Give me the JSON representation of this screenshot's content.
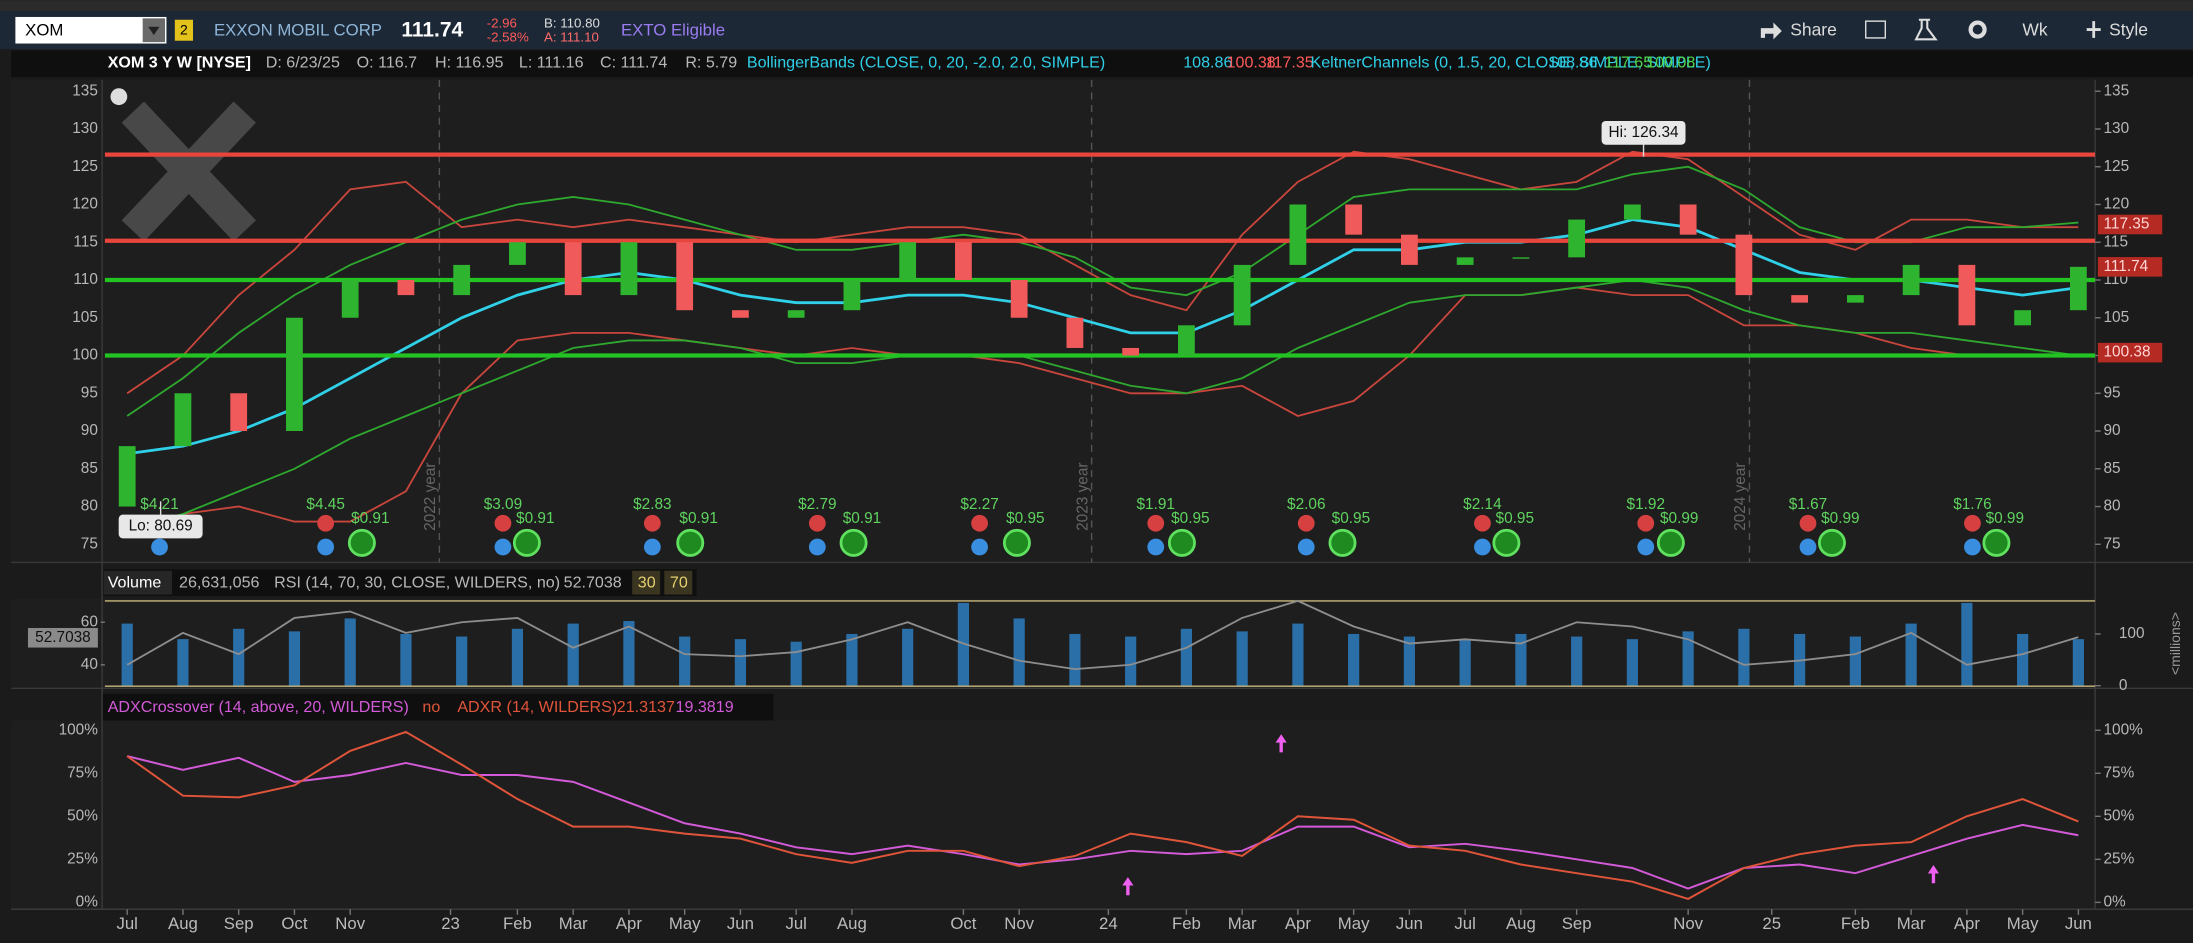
{
  "toolbar": {
    "symbol": "XOM",
    "link_badge": "2",
    "company": "EXXON MOBIL CORP",
    "last": "111.74",
    "change": "-2.96",
    "change_pct": "-2.58%",
    "bid": "B: 110.80",
    "ask": "A: 111.10",
    "tag": "EXTO Eligible",
    "buttons": [
      "Share",
      "Wk",
      "Style"
    ]
  },
  "header": {
    "study": "XOM 3 Y W [NYSE]",
    "fields": [
      "D: 6/23/25",
      "O: 116.7",
      "H: 116.95",
      "L: 111.16",
      "C: 111.74",
      "R: 5.79"
    ],
    "bollinger": {
      "label": "BollingerBands (CLOSE, 0, 20, -2.0, 2.0, SIMPLE)",
      "values": [
        "108.86",
        "100.38",
        "117.35"
      ]
    },
    "keltner": {
      "label": "KeltnerChannels (0, 1.5, 20, CLOSE, SIMPLE, SIMPLE)",
      "values": [
        "108.86",
        "117.65",
        "100.08"
      ]
    }
  },
  "chart_data": [
    {
      "type": "candlestick",
      "xlim": [
        -0.4,
        35.3
      ],
      "xticks": [
        {
          "value": 0,
          "label": "Jul"
        },
        {
          "value": 1,
          "label": "Aug"
        },
        {
          "value": 2,
          "label": "Sep"
        },
        {
          "value": 3,
          "label": "Oct"
        },
        {
          "value": 4,
          "label": "Nov"
        },
        {
          "value": 5.8,
          "label": "23"
        },
        {
          "value": 7,
          "label": "Feb"
        },
        {
          "value": 8,
          "label": "Mar"
        },
        {
          "value": 9,
          "label": "Apr"
        },
        {
          "value": 10,
          "label": "May"
        },
        {
          "value": 11,
          "label": "Jun"
        },
        {
          "value": 12,
          "label": "Jul"
        },
        {
          "value": 13,
          "label": "Aug"
        },
        {
          "value": 15,
          "label": "Oct"
        },
        {
          "value": 16,
          "label": "Nov"
        },
        {
          "value": 17.6,
          "label": "24"
        },
        {
          "value": 19,
          "label": "Feb"
        },
        {
          "value": 20,
          "label": "Mar"
        },
        {
          "value": 21,
          "label": "Apr"
        },
        {
          "value": 22,
          "label": "May"
        },
        {
          "value": 23,
          "label": "Jun"
        },
        {
          "value": 24,
          "label": "Jul"
        },
        {
          "value": 25,
          "label": "Aug"
        },
        {
          "value": 26,
          "label": "Sep"
        },
        {
          "value": 28,
          "label": "Nov"
        },
        {
          "value": 29.5,
          "label": "25"
        },
        {
          "value": 31,
          "label": "Feb"
        },
        {
          "value": 32,
          "label": "Mar"
        },
        {
          "value": 33,
          "label": "Apr"
        },
        {
          "value": 34,
          "label": "May"
        },
        {
          "value": 35,
          "label": "Jun"
        }
      ],
      "ylim": [
        72.6,
        136.5
      ],
      "yticks": [
        75,
        80,
        85,
        90,
        95,
        100,
        105,
        110,
        115,
        120,
        125,
        130,
        135
      ],
      "up_color": "#2fb42f",
      "down_color": "#f05a5a",
      "open": [
        80,
        88,
        95,
        90,
        105,
        110,
        108,
        112,
        115,
        108,
        115,
        106,
        105,
        106,
        110,
        115,
        110,
        105,
        101,
        100,
        104,
        112,
        120,
        116,
        112,
        113,
        113,
        118,
        120,
        116,
        108,
        107,
        108,
        112,
        104,
        106
      ],
      "close": [
        88,
        95,
        90,
        105,
        110,
        108,
        112,
        115,
        108,
        115,
        106,
        105,
        106,
        110,
        115,
        110,
        105,
        101,
        100,
        104,
        112,
        120,
        116,
        112,
        113,
        113,
        118,
        120,
        116,
        108,
        107,
        108,
        112,
        104,
        106,
        111.74
      ],
      "overlays": [
        {
          "color": "#2fd0e8",
          "values": [
            87,
            88,
            90,
            93,
            97,
            101,
            105,
            108,
            110,
            111,
            110,
            108,
            107,
            107,
            108,
            108,
            107,
            105,
            103,
            103,
            106,
            110,
            114,
            114,
            115,
            115,
            116,
            118,
            117,
            114,
            111,
            110,
            110,
            109,
            108,
            109
          ]
        },
        {
          "color": "#c9463d",
          "values": [
            95,
            100,
            108,
            114,
            122,
            123,
            117,
            118,
            117,
            118,
            117,
            116,
            115,
            116,
            117,
            117,
            116,
            112,
            108,
            106,
            116,
            123,
            127,
            126,
            124,
            122,
            123,
            127,
            126,
            121,
            116,
            114,
            118,
            118,
            117,
            117
          ]
        },
        {
          "color": "#c9463d",
          "values": [
            76,
            79,
            80,
            78,
            78,
            82,
            95,
            102,
            103,
            103,
            102,
            101,
            100,
            101,
            100,
            100,
            99,
            97,
            95,
            95,
            96,
            92,
            94,
            100,
            108,
            108,
            109,
            108,
            108,
            104,
            104,
            103,
            101,
            100,
            100,
            100
          ]
        },
        {
          "color": "#2ea82e",
          "values": [
            92,
            97,
            103,
            108,
            112,
            115,
            118,
            120,
            121,
            120,
            118,
            116,
            114,
            114,
            115,
            116,
            115,
            113,
            109,
            108,
            111,
            116,
            121,
            122,
            122,
            122,
            122,
            124,
            125,
            122,
            117,
            115,
            115,
            117,
            117,
            117.6
          ]
        },
        {
          "color": "#2ea82e",
          "values": [
            77,
            79,
            82,
            85,
            89,
            92,
            95,
            98,
            101,
            102,
            102,
            101,
            99,
            99,
            100,
            100,
            100,
            98,
            96,
            95,
            97,
            101,
            104,
            107,
            108,
            108,
            109,
            110,
            109,
            106,
            104,
            103,
            103,
            102,
            101,
            100
          ]
        }
      ],
      "levels": [
        {
          "value": 126.6,
          "color": "#e8453c"
        },
        {
          "value": 115.2,
          "color": "#e8453c"
        },
        {
          "value": 110,
          "color": "#22c322"
        },
        {
          "value": 100,
          "color": "#22c322"
        }
      ],
      "markers": [
        {
          "value": 117.35,
          "color": "#b52a22"
        },
        {
          "value": 111.74,
          "color": "#b52a22"
        },
        {
          "value": 100.38,
          "color": "#b52a22"
        }
      ],
      "high": {
        "label": "Hi: 126.34",
        "x": 27.2,
        "value": 126.34
      },
      "low": {
        "label": "Lo: 80.69",
        "x": 0.6,
        "value": 80.69
      },
      "year_lines": [
        {
          "value": 5.6,
          "label": "2022 year"
        },
        {
          "value": 17.3,
          "label": "2023 year"
        },
        {
          "value": 29.1,
          "label": "2024 year"
        }
      ],
      "earnings": {
        "color": "#5fd35f",
        "x": [
          0.58,
          3.56,
          6.74,
          9.42,
          12.38,
          15.29,
          18.45,
          21.15,
          24.31,
          27.24,
          30.15,
          33.1
        ],
        "labels": [
          "$4.21",
          "$4.45",
          "$3.09",
          "$2.83",
          "$2.79",
          "$2.27",
          "$1.91",
          "$2.06",
          "$2.14",
          "$1.92",
          "$1.67",
          "$1.76"
        ]
      },
      "dividends": {
        "color": "#5fd35f",
        "x": [
          4.21,
          7.17,
          10.1,
          13.03,
          15.96,
          18.92,
          21.8,
          24.74,
          27.69,
          30.58,
          33.53
        ],
        "labels": [
          "$0.91",
          "$0.91",
          "$0.91",
          "$0.91",
          "$0.95",
          "$0.95",
          "$0.95",
          "$0.95",
          "$0.99",
          "$0.99",
          "$0.99"
        ]
      }
    },
    {
      "type": "bar",
      "title": "Volume",
      "total": "26,631,056",
      "xlim": [
        -0.4,
        35.3
      ],
      "color": "#2a6fa8",
      "values": [
        120,
        90,
        110,
        105,
        130,
        100,
        95,
        110,
        120,
        125,
        95,
        90,
        85,
        100,
        110,
        160,
        130,
        100,
        95,
        110,
        105,
        120,
        100,
        95,
        90,
        100,
        95,
        90,
        105,
        110,
        100,
        95,
        120,
        160,
        100,
        90
      ],
      "y2lim": [
        -5,
        168
      ],
      "y2ticks": [
        0,
        100
      ],
      "y2label": "<millions>",
      "ylim": [
        29,
        71
      ],
      "yticks": [
        40,
        60
      ],
      "rsi": {
        "label": "RSI (14, 70, 30, CLOSE, WILDERS, no)",
        "last": 52.7038,
        "bounds": [
          30,
          70
        ],
        "bound_color": "#c9b77a",
        "color": "#8e8e8e",
        "values": [
          40,
          55,
          45,
          62,
          65,
          55,
          60,
          62,
          48,
          58,
          45,
          44,
          46,
          52,
          60,
          50,
          42,
          38,
          40,
          48,
          62,
          70,
          58,
          50,
          52,
          50,
          60,
          58,
          52,
          40,
          42,
          45,
          55,
          40,
          45,
          53
        ]
      }
    },
    {
      "type": "line",
      "xlim": [
        -0.4,
        35.3
      ],
      "ylim": [
        -4,
        105.7
      ],
      "yticks": [
        {
          "value": 0,
          "label": "0%"
        },
        {
          "value": 25,
          "label": "25%"
        },
        {
          "value": 50,
          "label": "50%"
        },
        {
          "value": 75,
          "label": "75%"
        },
        {
          "value": 100,
          "label": "100%"
        }
      ],
      "series": [
        {
          "name": "ADXCrossover (14, above, 20, WILDERS)",
          "color": "#d35ad8",
          "values": [
            85,
            77,
            84,
            70,
            74,
            81,
            74,
            74,
            70,
            58,
            46,
            40,
            32,
            28,
            33,
            28,
            22,
            25,
            30,
            28,
            30,
            44,
            44,
            32,
            34,
            30,
            25,
            20,
            8,
            20,
            22,
            17,
            27,
            37,
            45,
            39
          ]
        },
        {
          "name": "ADXR (14, WILDERS)",
          "color": "#e0553a",
          "values": [
            85,
            62,
            61,
            68,
            88,
            99,
            80,
            60,
            44,
            44,
            40,
            37,
            28,
            23,
            30,
            30,
            21,
            27,
            40,
            35,
            27,
            50,
            48,
            33,
            30,
            22,
            17,
            12,
            2,
            20,
            28,
            33,
            35,
            50,
            60,
            47
          ]
        }
      ],
      "flag": "no",
      "last_values": [
        "21.3137",
        "19.3819"
      ],
      "signals": {
        "color": "#f060f0",
        "x": [
          17.95,
          20.7,
          32.4
        ],
        "values": [
          9,
          92,
          16
        ]
      }
    }
  ]
}
